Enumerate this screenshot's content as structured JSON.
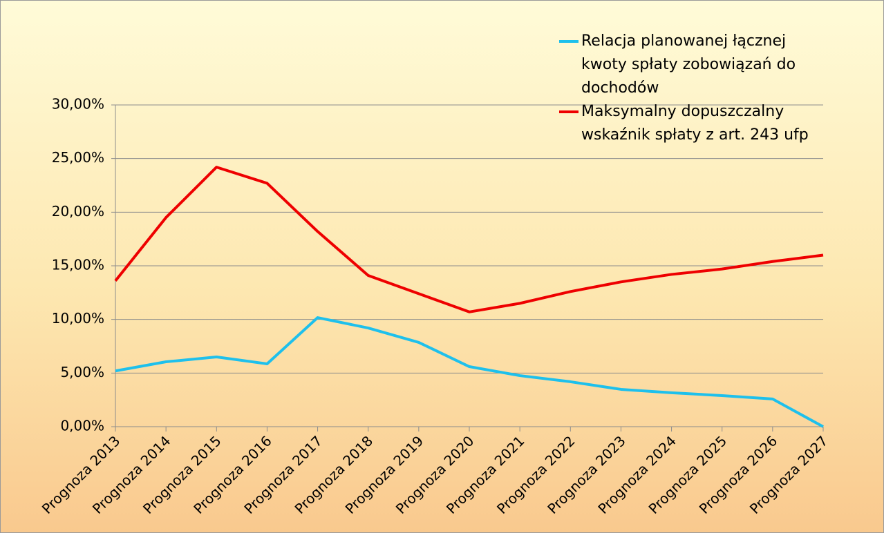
{
  "chart_data": {
    "type": "line",
    "categories": [
      "Prognoza 2013",
      "Prognoza 2014",
      "Prognoza 2015",
      "Prognoza 2016",
      "Prognoza 2017",
      "Prognoza 2018",
      "Prognoza 2019",
      "Prognoza 2020",
      "Prognoza 2021",
      "Prognoza 2022",
      "Prognoza 2023",
      "Prognoza 2024",
      "Prognoza 2025",
      "Prognoza 2026",
      "Prognoza 2027"
    ],
    "series": [
      {
        "name": "Relacja planowanej łącznej kwoty spłaty zobowiązań do dochodów",
        "color": "#1ec0ec",
        "values": [
          5.2,
          6.05,
          6.5,
          5.86,
          10.17,
          9.2,
          7.86,
          5.6,
          4.76,
          4.19,
          3.48,
          3.16,
          2.9,
          2.58,
          0
        ]
      },
      {
        "name": "Maksymalny dopuszczalny wskaźnik spłaty z art. 243 ufp",
        "color": "#ee0000",
        "values": [
          13.6,
          19.5,
          24.2,
          22.7,
          18.2,
          14.1,
          12.4,
          10.7,
          11.5,
          12.6,
          13.5,
          14.2,
          14.7,
          15.4,
          16.0
        ]
      }
    ],
    "ylim": [
      0,
      30
    ],
    "yticks": [
      {
        "value": 0,
        "label": "0,00%"
      },
      {
        "value": 5,
        "label": "5,00%"
      },
      {
        "value": 10,
        "label": "10,00%"
      },
      {
        "value": 15,
        "label": "15,00%"
      },
      {
        "value": 20,
        "label": "20,00%"
      },
      {
        "value": 25,
        "label": "25,00%"
      },
      {
        "value": 30,
        "label": "30,00%"
      }
    ],
    "grid": true,
    "legend": "top-right"
  }
}
